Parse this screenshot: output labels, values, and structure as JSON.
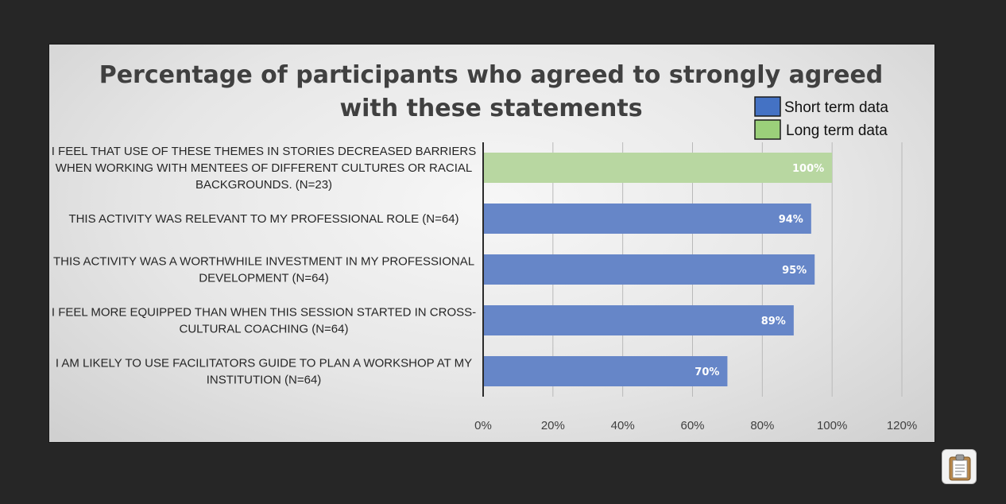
{
  "chart_data": {
    "type": "bar",
    "orientation": "horizontal",
    "title": "Percentage of participants who agreed to strongly agreed with these statements",
    "title_lines": [
      "Percentage of participants who agreed to strongly agreed",
      "with these statements"
    ],
    "categories": [
      "I FEEL THAT USE OF THESE THEMES IN STORIES DECREASED BARRIERS WHEN WORKING WITH MENTEES OF DIFFERENT CULTURES OR RACIAL BACKGROUNDS. (N=23)",
      "THIS ACTIVITY WAS RELEVANT TO MY PROFESSIONAL ROLE (N=64)",
      "THIS ACTIVITY WAS A WORTHWHILE INVESTMENT IN MY PROFESSIONAL DEVELOPMENT (N=64)",
      "I FEEL MORE EQUIPPED THAN WHEN THIS SESSION STARTED IN CROSS-CULTURAL COACHING (N=64)",
      "I AM LIKELY TO USE FACILITATORS GUIDE TO PLAN A WORKSHOP AT MY INSTITUTION (N=64)"
    ],
    "category_lines": [
      [
        "I FEEL THAT USE OF THESE THEMES IN STORIES DECREASED BARRIERS",
        "WHEN WORKING WITH MENTEES OF DIFFERENT CULTURES OR RACIAL",
        "BACKGROUNDS. (N=23)"
      ],
      [
        "THIS ACTIVITY WAS RELEVANT TO MY PROFESSIONAL ROLE (N=64)"
      ],
      [
        "THIS ACTIVITY WAS A WORTHWHILE INVESTMENT IN MY PROFESSIONAL",
        "DEVELOPMENT (N=64)"
      ],
      [
        "I FEEL MORE EQUIPPED THAN WHEN THIS SESSION STARTED IN CROSS-",
        "CULTURAL COACHING (N=64)"
      ],
      [
        "I AM LIKELY TO USE FACILITATORS GUIDE TO PLAN A WORKSHOP AT MY",
        "INSTITUTION (N=64)"
      ]
    ],
    "values": [
      100,
      94,
      95,
      89,
      70
    ],
    "value_labels": [
      "100%",
      "94%",
      "95%",
      "89%",
      "70%"
    ],
    "bar_series": [
      "Long term data",
      "Short term data",
      "Short term data",
      "Short term data",
      "Short term data"
    ],
    "series": [
      {
        "name": "Short term data",
        "color": "#6686c8"
      },
      {
        "name": "Long term data",
        "color": "#b8d7a1"
      }
    ],
    "legend": [
      {
        "name": "Short term data",
        "swatch": "#4472c4"
      },
      {
        "name": "Long term data",
        "swatch": "#9bd07a"
      }
    ],
    "xlim": [
      0,
      120
    ],
    "xticks": [
      0,
      20,
      40,
      60,
      80,
      100,
      120
    ],
    "xtick_labels": [
      "0%",
      "20%",
      "40%",
      "60%",
      "80%",
      "100%",
      "120%"
    ],
    "xlabel": "",
    "ylabel": "",
    "grid": true,
    "legend_position": "top-right"
  },
  "clipboard_icon": "clipboard-icon"
}
